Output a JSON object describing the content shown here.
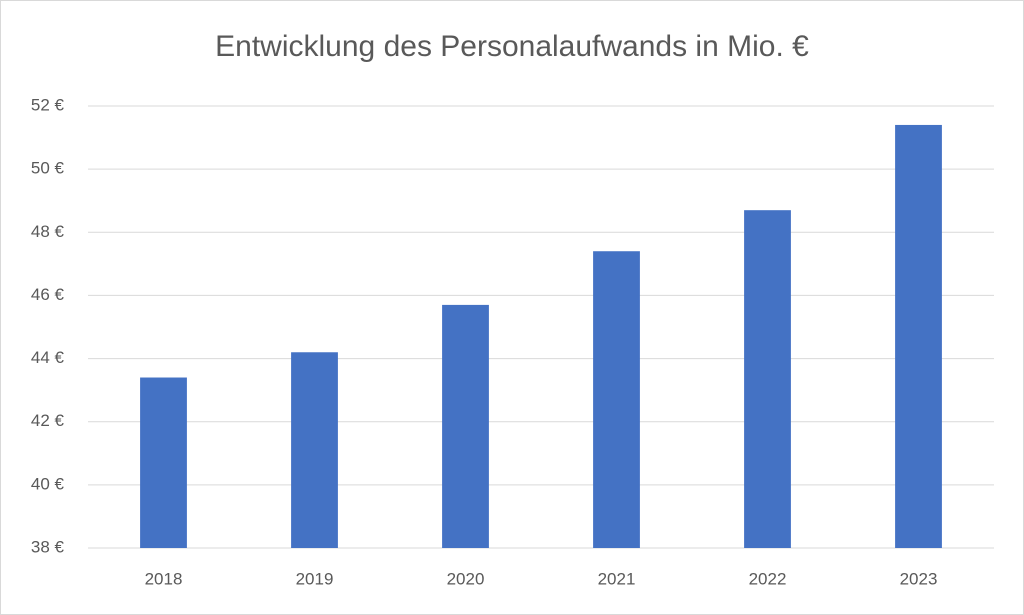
{
  "chart_data": {
    "type": "bar",
    "title": "Entwicklung des Personalaufwands in Mio. €",
    "categories": [
      "2018",
      "2019",
      "2020",
      "2021",
      "2022",
      "2023"
    ],
    "values": [
      43.4,
      44.2,
      45.7,
      47.4,
      48.7,
      51.4
    ],
    "color": "#4472c4",
    "ylim": [
      38,
      52
    ],
    "yticks": [
      {
        "value": 38,
        "label": "38 €"
      },
      {
        "value": 40,
        "label": "40 €"
      },
      {
        "value": 42,
        "label": "42 €"
      },
      {
        "value": 44,
        "label": "44 €"
      },
      {
        "value": 46,
        "label": "46 €"
      },
      {
        "value": 48,
        "label": "48 €"
      },
      {
        "value": 50,
        "label": "50 €"
      },
      {
        "value": 52,
        "label": "52 €"
      }
    ],
    "grid": true
  }
}
